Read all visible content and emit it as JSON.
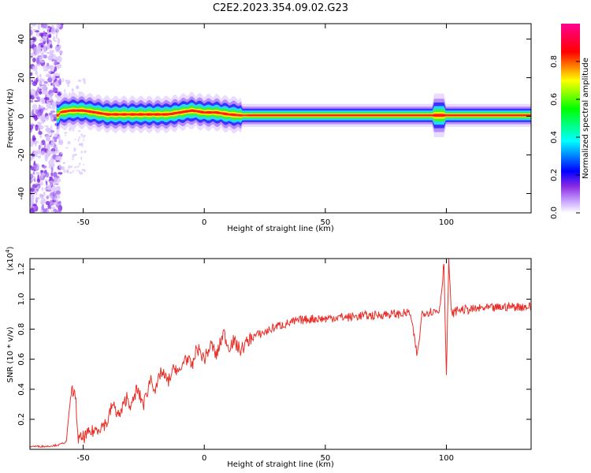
{
  "title": "C2E2.2023.354.09.02.G23",
  "chart_data": [
    {
      "type": "heatmap",
      "xlabel": "Height of straight line (km)",
      "ylabel": "Frequency (Hz)",
      "xlim": [
        -72,
        135
      ],
      "ylim": [
        -50,
        48
      ],
      "xticks": [
        -50,
        0,
        50,
        100
      ],
      "yticks": [
        -40,
        -20,
        0,
        20,
        40
      ],
      "colorbar": {
        "label": "Normalized spectral amplitude",
        "range": [
          0,
          1
        ],
        "ticks": [
          "0.0",
          "0.2",
          "0.4",
          "0.6",
          "0.8"
        ],
        "colormap": [
          "#ffffff",
          "#8a2be2",
          "#0000ff",
          "#00ffff",
          "#00ff00",
          "#ffff00",
          "#ff0000",
          "#ff00aa"
        ]
      },
      "ridge": {
        "description_values_freq_hz": [
          [
            -60,
            2
          ],
          [
            -55,
            3
          ],
          [
            -50,
            3
          ],
          [
            -45,
            2
          ],
          [
            -40,
            1
          ],
          [
            -35,
            1
          ],
          [
            -30,
            1
          ],
          [
            -25,
            1
          ],
          [
            -20,
            1
          ],
          [
            -15,
            1
          ],
          [
            -10,
            2
          ],
          [
            -5,
            3
          ],
          [
            0,
            2
          ],
          [
            5,
            2
          ],
          [
            10,
            1
          ],
          [
            15,
            0.5
          ],
          [
            20,
            0.5
          ],
          [
            135,
            0.5
          ]
        ]
      }
    },
    {
      "type": "line",
      "xlabel": "Height of straight line (km)",
      "ylabel": "SNR (10 * v/v)",
      "y_multiplier": "(x10",
      "y_multiplier_exp": "4",
      "xlim": [
        -72,
        135
      ],
      "ylim": [
        0,
        1.27
      ],
      "xticks": [
        -50,
        0,
        50,
        100
      ],
      "yticks": [
        "0.2",
        "0.4",
        "0.6",
        "0.8",
        "1.0",
        "1.2"
      ],
      "series": [
        {
          "color": "#e8302a",
          "x": [
            -72,
            -65,
            -60,
            -57,
            -55,
            -54,
            -53,
            -52,
            -50,
            -45,
            -40,
            -38,
            -35,
            -32,
            -30,
            -28,
            -25,
            -22,
            -20,
            -18,
            -15,
            -12,
            -10,
            -8,
            -5,
            -3,
            0,
            3,
            5,
            8,
            10,
            12,
            15,
            18,
            20,
            25,
            30,
            35,
            40,
            45,
            50,
            55,
            60,
            65,
            70,
            75,
            80,
            85,
            88,
            90,
            95,
            97,
            98,
            99,
            100,
            101,
            102,
            105,
            110,
            115,
            120,
            125,
            130,
            135
          ],
          "values": [
            0.02,
            0.02,
            0.03,
            0.05,
            0.38,
            0.4,
            0.3,
            0.06,
            0.08,
            0.13,
            0.18,
            0.3,
            0.22,
            0.35,
            0.28,
            0.4,
            0.3,
            0.48,
            0.38,
            0.52,
            0.45,
            0.55,
            0.5,
            0.62,
            0.55,
            0.68,
            0.6,
            0.7,
            0.62,
            0.78,
            0.68,
            0.72,
            0.66,
            0.72,
            0.75,
            0.78,
            0.82,
            0.84,
            0.86,
            0.87,
            0.87,
            0.88,
            0.88,
            0.89,
            0.89,
            0.9,
            0.9,
            0.91,
            0.62,
            0.91,
            0.92,
            0.92,
            1.05,
            1.25,
            0.48,
            1.27,
            0.9,
            0.93,
            0.93,
            0.94,
            0.94,
            0.95,
            0.95,
            0.95
          ]
        }
      ]
    }
  ]
}
